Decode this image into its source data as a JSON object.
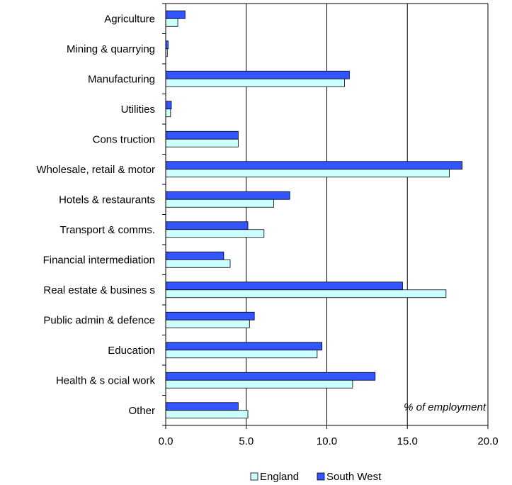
{
  "chart_data": {
    "type": "bar",
    "orientation": "horizontal",
    "categories": [
      "Agriculture",
      "Mining & quarrying",
      "Manufacturing",
      "Utilities",
      "Cons truction",
      "Wholesale, retail & motor",
      "Hotels & restaurants",
      "Transport & comms.",
      "Financial intermediation",
      "Real estate & busines s",
      "Public admin & defence",
      "Education",
      "Health & s ocial work",
      "Other"
    ],
    "series": [
      {
        "name": "South West",
        "color": "#3355ff",
        "values": [
          1.2,
          0.15,
          11.4,
          0.35,
          4.5,
          18.4,
          7.7,
          5.1,
          3.6,
          14.7,
          5.5,
          9.7,
          13.0,
          4.5
        ]
      },
      {
        "name": "England",
        "color": "#ccffff",
        "values": [
          0.75,
          0.1,
          11.1,
          0.3,
          4.5,
          17.6,
          6.7,
          6.1,
          4.0,
          17.4,
          5.2,
          9.4,
          11.6,
          5.1
        ]
      }
    ],
    "xlim": [
      0,
      20
    ],
    "x_ticks": [
      "0.0",
      "5.0",
      "10.0",
      "15.0",
      "20.0"
    ],
    "annotation": "% of employment",
    "grid": "vertical",
    "legend_position": "bottom-center",
    "legend": [
      "England",
      "South West"
    ]
  }
}
